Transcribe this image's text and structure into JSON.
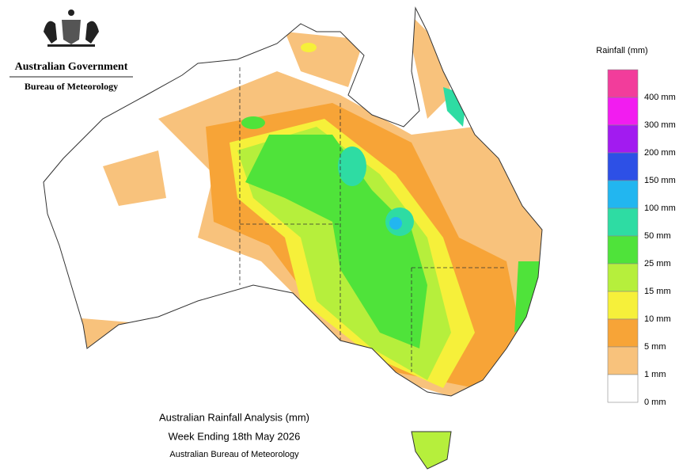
{
  "header": {
    "government": "Australian Government",
    "bureau": "Bureau of Meteorology"
  },
  "legend": {
    "title": "Rainfall (mm)",
    "colors": [
      "#f23d9b",
      "#f21cf0",
      "#a21bf0",
      "#2d50e6",
      "#22b6f0",
      "#2edca3",
      "#4fe33a",
      "#b6ef3c",
      "#f6f03a",
      "#f7a437",
      "#f8c27c",
      "#ffffff"
    ],
    "labels": [
      "400 mm",
      "300 mm",
      "200 mm",
      "150 mm",
      "100 mm",
      "50 mm",
      "25 mm",
      "15 mm",
      "10 mm",
      "5 mm",
      "1 mm",
      "0 mm"
    ]
  },
  "caption": {
    "title": "Australian Rainfall Analysis (mm)",
    "subtitle": "Week Ending 18th May 2026",
    "credit": "Australian Bureau of Meteorology"
  }
}
